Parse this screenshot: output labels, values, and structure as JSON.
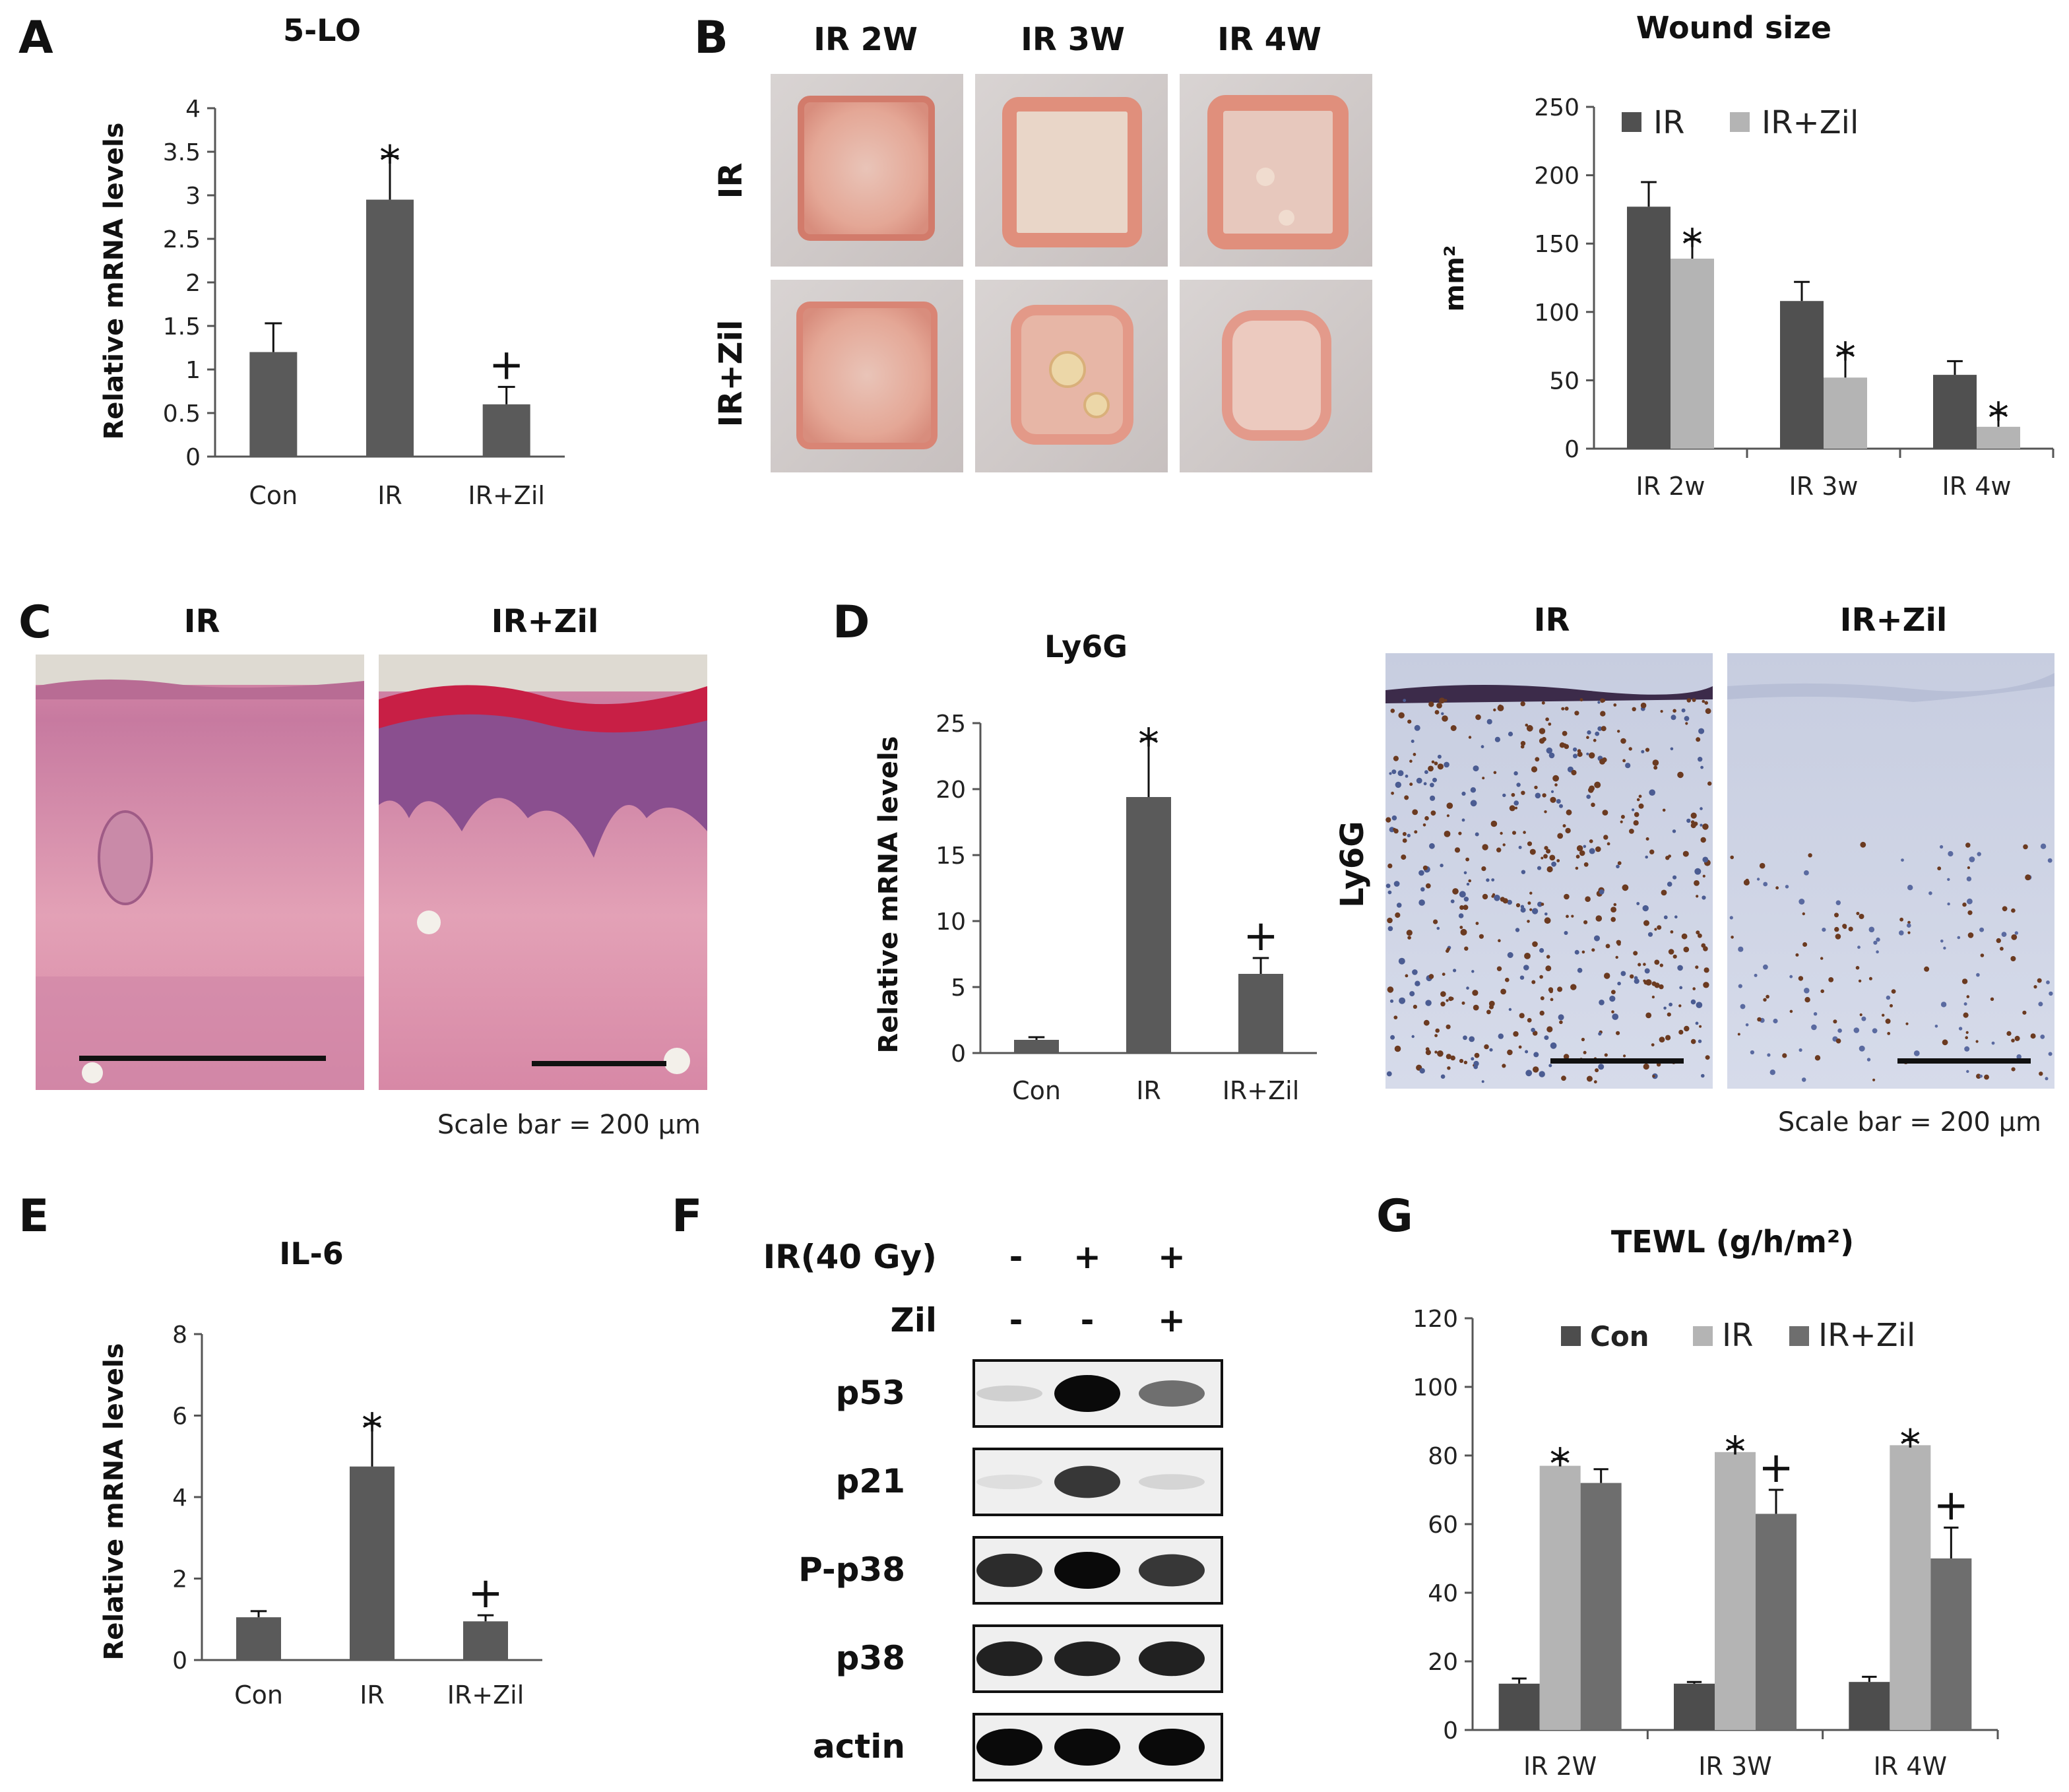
{
  "panels": {
    "A": {
      "letter": "A",
      "chart_data": {
        "type": "bar",
        "title": "5-LO",
        "ylabel": "Relative mRNA levels",
        "xlabel": "",
        "categories": [
          "Con",
          "IR",
          "IR+Zil"
        ],
        "values": [
          1.2,
          2.95,
          0.6
        ],
        "errors": [
          0.33,
          0.5,
          0.2
        ],
        "markers": [
          "",
          "*",
          "+"
        ],
        "ylim": [
          0,
          4
        ],
        "yticks": [
          0,
          0.5,
          1,
          1.5,
          2,
          2.5,
          3,
          3.5,
          4
        ],
        "ytick_labels": [
          "0",
          "0.5",
          "1",
          "1.5",
          "2",
          "2.5",
          "3",
          "3.5",
          "4"
        ],
        "color": "#5a5a5a"
      }
    },
    "B": {
      "letter": "B",
      "columns": [
        "IR 2W",
        "IR 3W",
        "IR 4W"
      ],
      "rows": [
        "IR",
        "IR+Zil"
      ],
      "chart_data": {
        "type": "bar",
        "title": "Wound size",
        "ylabel": "mm²",
        "xlabel": "",
        "categories": [
          "IR 2w",
          "IR 3w",
          "IR 4w"
        ],
        "series": [
          {
            "name": "IR",
            "values": [
              177,
              108,
              54
            ],
            "errors": [
              18,
              14,
              10
            ],
            "markers": [
              "",
              "",
              ""
            ],
            "color": "#505050"
          },
          {
            "name": "IR+Zil",
            "values": [
              139,
              52,
              16
            ],
            "errors": [
              14,
              18,
              10
            ],
            "markers": [
              "*",
              "*",
              "*"
            ],
            "color": "#b4b4b4"
          }
        ],
        "ylim": [
          0,
          250
        ],
        "yticks": [
          0,
          50,
          100,
          150,
          200,
          250
        ],
        "legend": "top-left"
      }
    },
    "C": {
      "letter": "C",
      "labels": [
        "IR",
        "IR+Zil"
      ],
      "scale_note": "Scale bar = 200 μm"
    },
    "D": {
      "letter": "D",
      "chart_data": {
        "type": "bar",
        "title": "Ly6G",
        "ylabel": "Relative mRNA levels",
        "xlabel": "",
        "categories": [
          "Con",
          "IR",
          "IR+Zil"
        ],
        "values": [
          1.0,
          19.4,
          6.0
        ],
        "errors": [
          0.2,
          4.4,
          1.2
        ],
        "markers": [
          "",
          "*",
          "+"
        ],
        "ylim": [
          0,
          25
        ],
        "yticks": [
          0,
          5,
          10,
          15,
          20,
          25
        ],
        "color": "#5a5a5a"
      },
      "image_labels": [
        "IR",
        "IR+Zil"
      ],
      "row_label": "Ly6G",
      "scale_note": "Scale bar = 200 μm"
    },
    "E": {
      "letter": "E",
      "chart_data": {
        "type": "bar",
        "title": "IL-6",
        "ylabel": "Relative mRNA levels",
        "xlabel": "",
        "categories": [
          "Con",
          "IR",
          "IR+Zil"
        ],
        "values": [
          1.05,
          4.75,
          0.95
        ],
        "errors": [
          0.15,
          1.05,
          0.15
        ],
        "markers": [
          "",
          "*",
          "+"
        ],
        "ylim": [
          0,
          8
        ],
        "yticks": [
          0,
          2,
          4,
          6,
          8
        ],
        "color": "#5a5a5a"
      }
    },
    "F": {
      "letter": "F",
      "conditions": [
        {
          "label": "IR(40 Gy)",
          "values": [
            "-",
            "+",
            "+"
          ]
        },
        {
          "label": "Zil",
          "values": [
            "-",
            "-",
            "+"
          ]
        }
      ],
      "blots": [
        {
          "label": "p53",
          "intensity": [
            0.12,
            1.0,
            0.55
          ]
        },
        {
          "label": "p21",
          "intensity": [
            0.06,
            0.8,
            0.1
          ]
        },
        {
          "label": "P-p38",
          "intensity": [
            0.85,
            1.0,
            0.8
          ]
        },
        {
          "label": "p38",
          "intensity": [
            0.9,
            0.9,
            0.9
          ]
        },
        {
          "label": "actin",
          "intensity": [
            1.0,
            1.0,
            1.0
          ]
        }
      ]
    },
    "G": {
      "letter": "G",
      "chart_data": {
        "type": "bar",
        "title": "TEWL (g/h/m²)",
        "ylabel": "",
        "xlabel": "",
        "categories": [
          "IR 2W",
          "IR 3W",
          "IR 4W"
        ],
        "series": [
          {
            "name": "Con",
            "values": [
              13.5,
              13.5,
              14
            ],
            "errors": [
              1.5,
              0.5,
              1.5
            ],
            "markers": [
              "",
              "",
              ""
            ],
            "color": "#4d4d4d"
          },
          {
            "name": "IR",
            "values": [
              77,
              81,
              83
            ],
            "errors": [
              2,
              1.5,
              1.5
            ],
            "markers": [
              "*",
              "*",
              "*"
            ],
            "color": "#b4b4b4"
          },
          {
            "name": "IR+Zil",
            "values": [
              72,
              63,
              50
            ],
            "errors": [
              4,
              7,
              9
            ],
            "markers": [
              "",
              "+",
              "+"
            ],
            "color": "#6e6e6e"
          }
        ],
        "ylim": [
          0,
          120
        ],
        "yticks": [
          0,
          20,
          40,
          60,
          80,
          100,
          120
        ],
        "legend": "top"
      }
    }
  }
}
